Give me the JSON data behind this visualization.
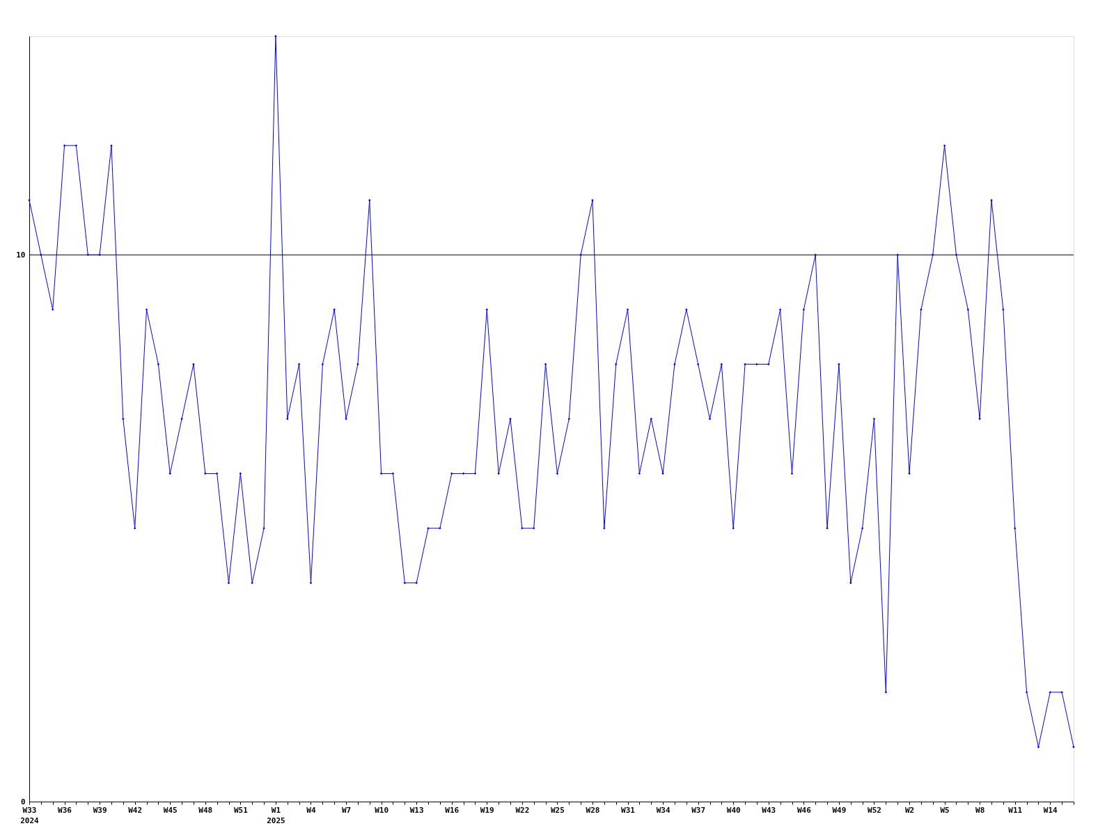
{
  "chart_data": {
    "type": "line",
    "categories": [
      "W33\n2024",
      null,
      null,
      "W36",
      null,
      null,
      "W39",
      null,
      null,
      "W42",
      null,
      null,
      "W45",
      null,
      null,
      "W48",
      null,
      null,
      "W51",
      null,
      null,
      "W1\n2025",
      null,
      null,
      "W4",
      null,
      null,
      "W7",
      null,
      null,
      "W10",
      null,
      null,
      "W13",
      null,
      null,
      "W16",
      null,
      null,
      "W19",
      null,
      null,
      "W22",
      null,
      null,
      "W25",
      null,
      null,
      "W28",
      null,
      null,
      "W31",
      null,
      null,
      "W34",
      null,
      null,
      "W37",
      null,
      null,
      "W40",
      null,
      null,
      "W43",
      null,
      null,
      "W46",
      null,
      null,
      "W49",
      null,
      null,
      "W52",
      null,
      null,
      "W2",
      null,
      null,
      "W5",
      null,
      null,
      "W8",
      null,
      null,
      "W11",
      null,
      null,
      "W14",
      null,
      null
    ],
    "series": [
      {
        "color": "#0000ff",
        "values": [
          11,
          10,
          9,
          12,
          12,
          10,
          10,
          12,
          7,
          5,
          9,
          8,
          6,
          7,
          8,
          6,
          6,
          4,
          6,
          4,
          5,
          14,
          7,
          8,
          4,
          8,
          9,
          7,
          8,
          11,
          6,
          6,
          4,
          4,
          5,
          5,
          6,
          6,
          6,
          9,
          6,
          7,
          5,
          5,
          8,
          6,
          7,
          10,
          11,
          5,
          8,
          9,
          6,
          7,
          6,
          8,
          9,
          8,
          7,
          8,
          5,
          8,
          8,
          8,
          9,
          6,
          9,
          10,
          5,
          8,
          4,
          5,
          7,
          2,
          10,
          6,
          9,
          10,
          12,
          10,
          9,
          7,
          11,
          9,
          5,
          2,
          1,
          2,
          2,
          1
        ]
      }
    ],
    "ylim": [
      0,
      14
    ],
    "yticks": [
      0,
      10
    ],
    "ref_lines": [
      {
        "axis": "y",
        "value": 10,
        "color": "#000000"
      }
    ],
    "marker": "diamond",
    "line_style": "solid",
    "grid": false
  }
}
